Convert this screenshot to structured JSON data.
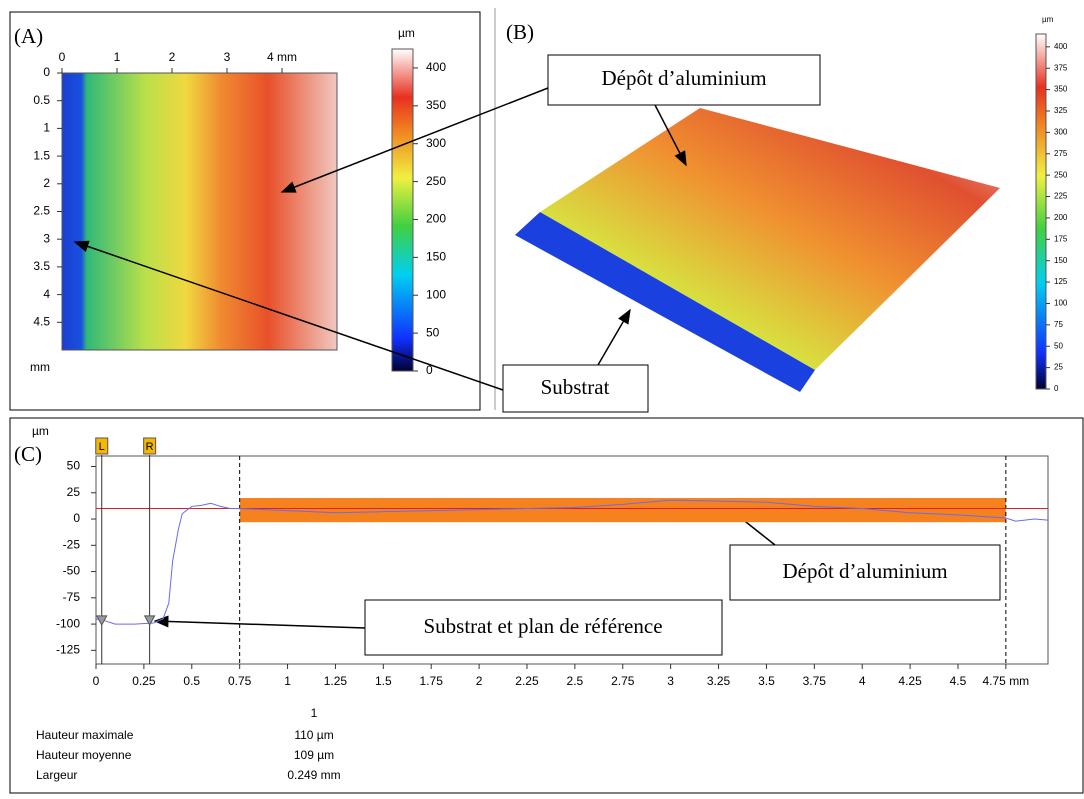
{
  "panel_a": {
    "label": "(A)",
    "unit": "mm",
    "xticks": [
      0,
      1,
      2,
      3,
      {
        "value": 4,
        "label": "4 mm"
      }
    ],
    "xlim": [
      0,
      5
    ],
    "yticks": [
      0,
      0.5,
      1,
      1.5,
      2,
      2.5,
      3,
      3.5,
      4,
      4.5
    ],
    "ylim": [
      0,
      5
    ],
    "colorbar": {
      "unit": "µm",
      "ticks": [
        0,
        50,
        100,
        150,
        200,
        250,
        300,
        350,
        400
      ],
      "lim": [
        0,
        425
      ]
    }
  },
  "panel_b": {
    "label": "(B)",
    "colorbar": {
      "unit": "µm",
      "ticks": [
        0,
        25,
        50,
        75,
        100,
        125,
        150,
        175,
        200,
        225,
        250,
        275,
        300,
        325,
        350,
        375,
        400
      ],
      "lim": [
        0,
        415
      ]
    }
  },
  "panel_c": {
    "label": "(C)",
    "y_unit": "µm",
    "xticks": [
      0,
      0.25,
      0.5,
      0.75,
      1,
      1.25,
      1.5,
      1.75,
      2,
      2.25,
      2.5,
      2.75,
      3,
      3.25,
      3.5,
      3.75,
      4,
      4.25,
      4.5,
      {
        "value": 4.75,
        "label": "4.75 mm"
      }
    ],
    "xlim": [
      0,
      4.97
    ],
    "yticks": [
      50,
      25,
      0,
      -25,
      -50,
      -75,
      -100,
      -125
    ],
    "ylim": [
      -138,
      60
    ],
    "cursors": [
      {
        "label": "L",
        "x": 0.03,
        "y": -97
      },
      {
        "label": "R",
        "x": 0.28,
        "y": -97
      }
    ],
    "bounds": [
      0.75,
      4.75
    ],
    "reference": 10,
    "band": [
      -3,
      20
    ],
    "profile": {
      "color": "#6a6af0",
      "x": [
        0,
        0.05,
        0.1,
        0.2,
        0.3,
        0.35,
        0.38,
        0.4,
        0.43,
        0.45,
        0.5,
        0.55,
        0.6,
        0.65,
        0.7,
        0.75,
        1,
        1.25,
        1.5,
        1.75,
        2,
        2.25,
        2.5,
        2.75,
        3,
        3.25,
        3.5,
        3.75,
        4,
        4.25,
        4.5,
        4.75,
        4.8,
        4.9,
        4.97
      ],
      "y": [
        -95,
        -97,
        -100,
        -100,
        -99,
        -95,
        -80,
        -40,
        -10,
        5,
        12,
        13,
        15,
        12,
        10,
        10,
        8,
        6,
        7,
        8,
        9,
        10,
        11,
        14,
        18,
        17,
        16,
        12,
        10,
        6,
        4,
        1,
        -2,
        0,
        -1
      ]
    }
  },
  "annotations": {
    "deposit_top": "Dépôt d’aluminium",
    "substrate_top": "Substrat",
    "deposit_bottom": "Dépôt d’aluminium",
    "substrate_bottom": "Substrat et plan de référence"
  },
  "table": {
    "header": "1",
    "rows": [
      [
        "Hauteur maximale",
        "110 µm"
      ],
      [
        "Hauteur moyenne",
        "109 µm"
      ],
      [
        "Largeur",
        "0.249 mm"
      ]
    ]
  }
}
